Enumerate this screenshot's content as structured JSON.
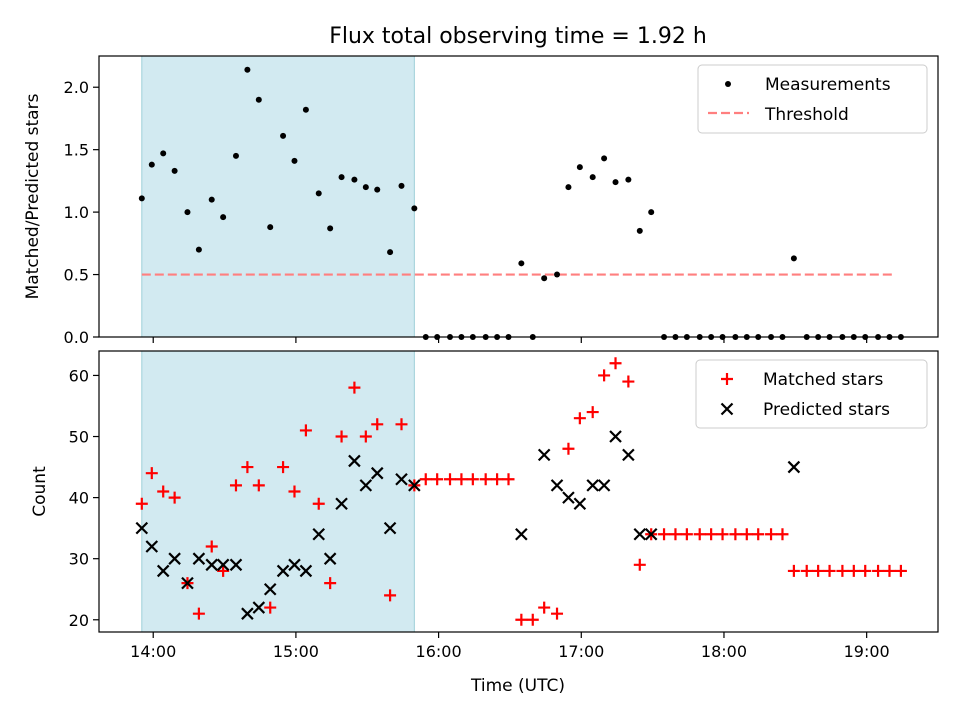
{
  "chart_data": {
    "type": "scatter",
    "title": "Flux total observing time = 1.92 h",
    "xlabel": "Time (UTC)",
    "x_unit": "hours UTC",
    "xlim": [
      13.62,
      19.5
    ],
    "xticks": [
      {
        "v": 14,
        "label": "14:00"
      },
      {
        "v": 15,
        "label": "15:00"
      },
      {
        "v": 16,
        "label": "16:00"
      },
      {
        "v": 17,
        "label": "17:00"
      },
      {
        "v": 18,
        "label": "18:00"
      },
      {
        "v": 19,
        "label": "19:00"
      }
    ],
    "highlight": {
      "x0": 13.92,
      "x1": 15.83,
      "color": "#add8e6"
    },
    "top": {
      "ylabel": "Matched/Predicted stars",
      "ylim": [
        0,
        2.25
      ],
      "yticks": [
        0.0,
        0.5,
        1.0,
        1.5,
        2.0
      ],
      "yticklabels": [
        "0.0",
        "0.5",
        "1.0",
        "1.5",
        "2.0"
      ],
      "threshold": {
        "name": "Threshold",
        "y": 0.5,
        "x0": 13.92,
        "x1": 19.2,
        "color": "#ff7f7f"
      },
      "legend": [
        "Measurements",
        "Threshold"
      ],
      "legend_loc": "upper right",
      "measurements": {
        "name": "Measurements",
        "color": "#000000",
        "points": [
          [
            13.92,
            1.11
          ],
          [
            13.99,
            1.38
          ],
          [
            14.07,
            1.47
          ],
          [
            14.15,
            1.33
          ],
          [
            14.24,
            1.0
          ],
          [
            14.32,
            0.7
          ],
          [
            14.41,
            1.1
          ],
          [
            14.49,
            0.96
          ],
          [
            14.58,
            1.45
          ],
          [
            14.66,
            2.14
          ],
          [
            14.74,
            1.9
          ],
          [
            14.82,
            0.88
          ],
          [
            14.91,
            1.61
          ],
          [
            14.99,
            1.41
          ],
          [
            15.07,
            1.82
          ],
          [
            15.16,
            1.15
          ],
          [
            15.24,
            0.87
          ],
          [
            15.32,
            1.28
          ],
          [
            15.41,
            1.26
          ],
          [
            15.49,
            1.2
          ],
          [
            15.57,
            1.18
          ],
          [
            15.66,
            0.68
          ],
          [
            15.74,
            1.21
          ],
          [
            15.83,
            1.03
          ],
          [
            15.91,
            0
          ],
          [
            15.99,
            0
          ],
          [
            16.08,
            0
          ],
          [
            16.16,
            0
          ],
          [
            16.24,
            0
          ],
          [
            16.33,
            0
          ],
          [
            16.41,
            0
          ],
          [
            16.49,
            0
          ],
          [
            16.58,
            0.59
          ],
          [
            16.66,
            0
          ],
          [
            16.74,
            0.47
          ],
          [
            16.83,
            0.5
          ],
          [
            16.91,
            1.2
          ],
          [
            16.99,
            1.36
          ],
          [
            17.08,
            1.28
          ],
          [
            17.16,
            1.43
          ],
          [
            17.24,
            1.24
          ],
          [
            17.33,
            1.26
          ],
          [
            17.41,
            0.85
          ],
          [
            17.49,
            1.0
          ],
          [
            17.58,
            0
          ],
          [
            17.66,
            0
          ],
          [
            17.74,
            0
          ],
          [
            17.83,
            0
          ],
          [
            17.91,
            0
          ],
          [
            17.99,
            0
          ],
          [
            18.08,
            0
          ],
          [
            18.16,
            0
          ],
          [
            18.24,
            0
          ],
          [
            18.33,
            0
          ],
          [
            18.41,
            0
          ],
          [
            18.49,
            0.63
          ],
          [
            18.58,
            0
          ],
          [
            18.66,
            0
          ],
          [
            18.74,
            0
          ],
          [
            18.83,
            0
          ],
          [
            18.91,
            0
          ],
          [
            18.99,
            0
          ],
          [
            19.08,
            0
          ],
          [
            19.16,
            0
          ],
          [
            19.24,
            0
          ]
        ]
      }
    },
    "bottom": {
      "ylabel": "Count",
      "ylim": [
        18,
        64
      ],
      "yticks": [
        20,
        30,
        40,
        50,
        60
      ],
      "yticklabels": [
        "20",
        "30",
        "40",
        "50",
        "60"
      ],
      "legend": [
        "Matched stars",
        "Predicted stars"
      ],
      "legend_loc": "upper right",
      "series": [
        {
          "name": "Matched stars",
          "marker": "+",
          "color": "#ff0000",
          "points": [
            [
              13.92,
              39
            ],
            [
              13.99,
              44
            ],
            [
              14.07,
              41
            ],
            [
              14.15,
              40
            ],
            [
              14.24,
              26
            ],
            [
              14.32,
              21
            ],
            [
              14.41,
              32
            ],
            [
              14.49,
              28
            ],
            [
              14.58,
              42
            ],
            [
              14.66,
              45
            ],
            [
              14.74,
              42
            ],
            [
              14.82,
              22
            ],
            [
              14.91,
              45
            ],
            [
              14.99,
              41
            ],
            [
              15.07,
              51
            ],
            [
              15.16,
              39
            ],
            [
              15.24,
              26
            ],
            [
              15.32,
              50
            ],
            [
              15.41,
              58
            ],
            [
              15.49,
              50
            ],
            [
              15.57,
              52
            ],
            [
              15.66,
              24
            ],
            [
              15.74,
              52
            ],
            [
              15.83,
              42
            ],
            [
              15.91,
              43
            ],
            [
              15.99,
              43
            ],
            [
              16.08,
              43
            ],
            [
              16.16,
              43
            ],
            [
              16.24,
              43
            ],
            [
              16.33,
              43
            ],
            [
              16.41,
              43
            ],
            [
              16.49,
              43
            ],
            [
              16.58,
              20
            ],
            [
              16.66,
              20
            ],
            [
              16.74,
              22
            ],
            [
              16.83,
              21
            ],
            [
              16.91,
              48
            ],
            [
              16.99,
              53
            ],
            [
              17.08,
              54
            ],
            [
              17.16,
              60
            ],
            [
              17.24,
              62
            ],
            [
              17.33,
              59
            ],
            [
              17.41,
              29
            ],
            [
              17.49,
              34
            ],
            [
              17.58,
              34
            ],
            [
              17.66,
              34
            ],
            [
              17.74,
              34
            ],
            [
              17.83,
              34
            ],
            [
              17.91,
              34
            ],
            [
              17.99,
              34
            ],
            [
              18.08,
              34
            ],
            [
              18.16,
              34
            ],
            [
              18.24,
              34
            ],
            [
              18.33,
              34
            ],
            [
              18.41,
              34
            ],
            [
              18.49,
              28
            ],
            [
              18.58,
              28
            ],
            [
              18.66,
              28
            ],
            [
              18.74,
              28
            ],
            [
              18.83,
              28
            ],
            [
              18.91,
              28
            ],
            [
              18.99,
              28
            ],
            [
              19.08,
              28
            ],
            [
              19.16,
              28
            ],
            [
              19.24,
              28
            ]
          ]
        },
        {
          "name": "Predicted stars",
          "marker": "x",
          "color": "#000000",
          "points": [
            [
              13.92,
              35
            ],
            [
              13.99,
              32
            ],
            [
              14.07,
              28
            ],
            [
              14.15,
              30
            ],
            [
              14.24,
              26
            ],
            [
              14.32,
              30
            ],
            [
              14.41,
              29
            ],
            [
              14.49,
              29
            ],
            [
              14.58,
              29
            ],
            [
              14.66,
              21
            ],
            [
              14.74,
              22
            ],
            [
              14.82,
              25
            ],
            [
              14.91,
              28
            ],
            [
              14.99,
              29
            ],
            [
              15.07,
              28
            ],
            [
              15.16,
              34
            ],
            [
              15.24,
              30
            ],
            [
              15.32,
              39
            ],
            [
              15.41,
              46
            ],
            [
              15.49,
              42
            ],
            [
              15.57,
              44
            ],
            [
              15.66,
              35
            ],
            [
              15.74,
              43
            ],
            [
              15.83,
              42
            ],
            [
              16.58,
              34
            ],
            [
              16.74,
              47
            ],
            [
              16.83,
              42
            ],
            [
              16.91,
              40
            ],
            [
              16.99,
              39
            ],
            [
              17.08,
              42
            ],
            [
              17.16,
              42
            ],
            [
              17.24,
              50
            ],
            [
              17.33,
              47
            ],
            [
              17.41,
              34
            ],
            [
              17.49,
              34
            ],
            [
              18.49,
              45
            ]
          ]
        }
      ]
    }
  }
}
